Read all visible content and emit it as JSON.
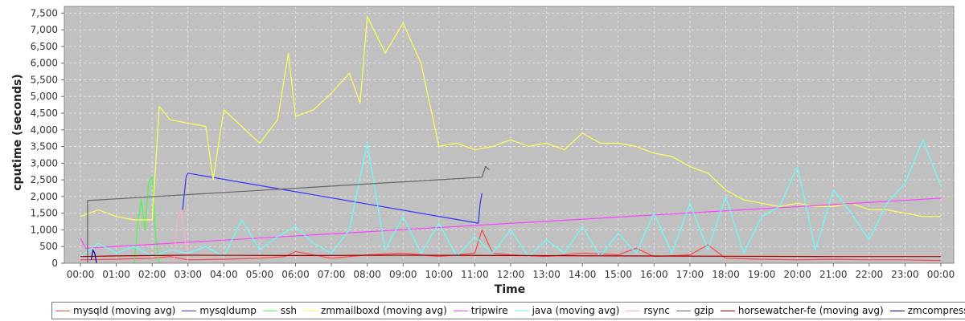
{
  "chart_data": {
    "type": "line",
    "title": "",
    "xlabel": "Time",
    "ylabel": "cputime (seconds)",
    "xlim": [
      0,
      24
    ],
    "ylim": [
      0,
      7700
    ],
    "grid": true,
    "background": "#c0c0c0",
    "legend_position": "bottom",
    "x_tick_labels": [
      "00:00",
      "01:00",
      "02:00",
      "03:00",
      "04:00",
      "05:00",
      "06:00",
      "07:00",
      "08:00",
      "09:00",
      "10:00",
      "11:00",
      "12:00",
      "13:00",
      "14:00",
      "15:00",
      "16:00",
      "17:00",
      "18:00",
      "19:00",
      "20:00",
      "21:00",
      "22:00",
      "23:00",
      "00:00"
    ],
    "y_ticks": [
      0,
      500,
      1000,
      1500,
      2000,
      2500,
      3000,
      3500,
      4000,
      4500,
      5000,
      5500,
      6000,
      6500,
      7000,
      7500
    ],
    "y_tick_labels": [
      "0",
      "500",
      "1,000",
      "1,500",
      "2,000",
      "2,500",
      "3,000",
      "3,500",
      "4,000",
      "4,500",
      "5,000",
      "5,500",
      "6,000",
      "6,500",
      "7,000",
      "7,500"
    ],
    "series": [
      {
        "name": "mysqld (moving avg)",
        "color": "#ff4444",
        "x": [
          0,
          1,
          2,
          2.5,
          3,
          4,
          5,
          5.7,
          6,
          7,
          8,
          9,
          10,
          11,
          11.2,
          11.5,
          12,
          13,
          14,
          15,
          15.5,
          16,
          17,
          17.5,
          18,
          19,
          20,
          21,
          22,
          23,
          24
        ],
        "y": [
          100,
          120,
          150,
          200,
          100,
          120,
          150,
          200,
          350,
          150,
          250,
          300,
          200,
          300,
          1000,
          300,
          250,
          200,
          300,
          250,
          450,
          200,
          250,
          550,
          150,
          120,
          100,
          120,
          100,
          100,
          80
        ]
      },
      {
        "name": "mysqldump",
        "color": "#3333ff",
        "x": [
          2.85,
          2.9,
          2.95,
          3.0,
          11.1,
          11.15,
          11.2
        ],
        "y": [
          1600,
          2100,
          2600,
          2700,
          1200,
          1800,
          2100
        ]
      },
      {
        "name": "ssh",
        "color": "#44ff44",
        "x": [
          1.5,
          1.6,
          1.7,
          1.8,
          1.9,
          2.0,
          2.1,
          2.2
        ],
        "y": [
          0,
          1200,
          1900,
          1000,
          2400,
          2600,
          800,
          0
        ]
      },
      {
        "name": "zmmailboxd (moving avg)",
        "color": "#ffff55",
        "x": [
          0,
          0.5,
          1,
          1.5,
          2,
          2.2,
          2.5,
          3,
          3.5,
          3.7,
          4,
          4.5,
          5,
          5.5,
          5.8,
          6,
          6.5,
          7,
          7.5,
          7.8,
          8,
          8.5,
          9,
          9.5,
          10,
          10.5,
          11,
          11.5,
          12,
          12.5,
          13,
          13.5,
          14,
          14.5,
          15,
          15.5,
          16,
          16.5,
          17,
          17.5,
          18,
          18.5,
          19,
          19.5,
          20,
          20.5,
          21,
          21.5,
          22,
          22.5,
          23,
          23.5,
          24
        ],
        "y": [
          1400,
          1600,
          1400,
          1300,
          1300,
          4700,
          4300,
          4200,
          4100,
          2500,
          4600,
          4100,
          3600,
          4300,
          6300,
          4400,
          4600,
          5100,
          5700,
          4800,
          7400,
          6300,
          7200,
          6000,
          3500,
          3600,
          3400,
          3500,
          3700,
          3500,
          3600,
          3400,
          3900,
          3600,
          3600,
          3500,
          3300,
          3200,
          2900,
          2700,
          2200,
          1900,
          1800,
          1700,
          1800,
          1700,
          1700,
          1800,
          1600,
          1600,
          1500,
          1400,
          1400
        ]
      },
      {
        "name": "tripwire",
        "color": "#ff44ff",
        "x": [
          0,
          0.15,
          24
        ],
        "y": [
          750,
          450,
          1950
        ]
      },
      {
        "name": "java (moving avg)",
        "color": "#66ffff",
        "x": [
          0,
          0.5,
          1,
          1.5,
          2,
          2.5,
          3,
          3.5,
          4,
          4.5,
          5,
          5.5,
          6,
          6.5,
          7,
          7.5,
          8,
          8.5,
          9,
          9.5,
          10,
          10.5,
          11,
          11.5,
          12,
          12.5,
          13,
          13.5,
          14,
          14.5,
          15,
          15.5,
          16,
          16.5,
          17,
          17.5,
          18,
          18.5,
          19,
          19.5,
          20,
          20.5,
          21,
          21.5,
          22,
          22.5,
          23,
          23.5,
          24
        ],
        "y": [
          200,
          600,
          300,
          500,
          200,
          400,
          300,
          500,
          200,
          1300,
          400,
          800,
          1100,
          600,
          300,
          1000,
          3600,
          400,
          1400,
          300,
          1200,
          200,
          800,
          300,
          1000,
          200,
          700,
          300,
          1100,
          200,
          900,
          300,
          1500,
          300,
          1800,
          400,
          2000,
          300,
          1400,
          1700,
          2900,
          400,
          2200,
          1500,
          700,
          1800,
          2400,
          3700,
          2300
        ]
      },
      {
        "name": "rsync",
        "color": "#ffaacc",
        "x": [
          2.6,
          2.7,
          2.8,
          2.9,
          3.0
        ],
        "y": [
          0,
          1300,
          1600,
          900,
          0
        ]
      },
      {
        "name": "gzip",
        "color": "#666666",
        "x": [
          0.2,
          0.2,
          11.2,
          11.3,
          11.4
        ],
        "y": [
          0,
          1880,
          2580,
          2900,
          2800
        ]
      },
      {
        "name": "horsewatcher-fe (moving avg)",
        "color": "#aa0000",
        "x": [
          0,
          0.5,
          1,
          2,
          3,
          6,
          9,
          12,
          15,
          18,
          21,
          24
        ],
        "y": [
          200,
          210,
          220,
          230,
          240,
          230,
          240,
          230,
          220,
          210,
          200,
          200
        ]
      },
      {
        "name": "zmcompresslogs",
        "color": "#0000aa",
        "x": [
          0.3,
          0.35,
          0.4,
          0.45
        ],
        "y": [
          100,
          400,
          300,
          0
        ]
      }
    ]
  }
}
